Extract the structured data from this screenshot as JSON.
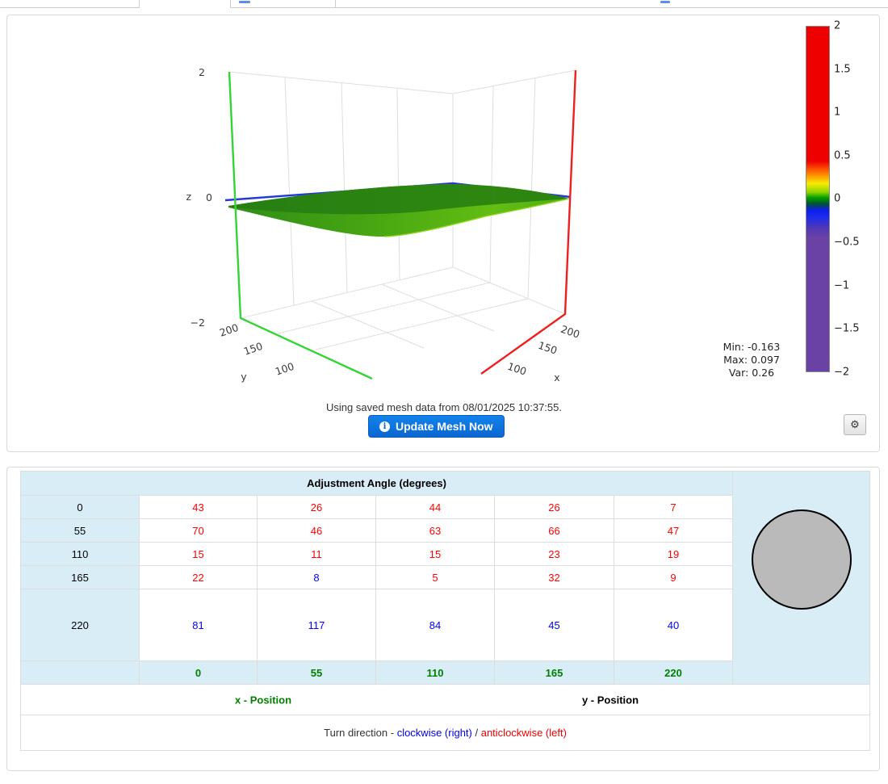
{
  "plot": {
    "z_label": "z",
    "y_label": "y",
    "x_label": "x",
    "z_ticks": [
      "2",
      "0",
      "−2"
    ],
    "y_ticks": [
      "200",
      "150",
      "100"
    ],
    "x_ticks": [
      "200",
      "150",
      "100"
    ],
    "colorbar": {
      "ticks": [
        "2",
        "1.5",
        "1",
        "0.5",
        "0",
        "−0.5",
        "−1",
        "−1.5",
        "−2"
      ]
    },
    "stats": {
      "min": "Min: -0.163",
      "max": "Max: 0.097",
      "var": "Var: 0.26"
    },
    "caption": "Using saved mesh data from 08/01/2025 10:37:55.",
    "update_button_label": "Update Mesh Now"
  },
  "icons": {
    "info": "i",
    "gear": "⚙"
  },
  "chart_data": {
    "type": "surface",
    "title": "",
    "xlabel": "x",
    "ylabel": "y",
    "zlabel": "z",
    "x_ticks": [
      200,
      150,
      100
    ],
    "y_ticks": [
      200,
      150,
      100
    ],
    "z_ticks": [
      2,
      0,
      -2
    ],
    "zlim": [
      -2,
      2
    ],
    "colorbar_ticks": [
      2,
      1.5,
      1,
      0.5,
      0,
      -0.5,
      -1,
      -1.5,
      -2
    ],
    "colorbar_colors_top_to_bottom": [
      "#ef0000",
      "#ff7b00",
      "#f6ec00",
      "#00a000",
      "#1b2bf0",
      "#6a41a5"
    ],
    "surface_summary": "near-flat green mesh surface around z=0 with shallow dip",
    "min": -0.163,
    "max": 0.097,
    "var": 0.26
  },
  "table": {
    "title": "Adjustment Angle (degrees)",
    "row_labels": [
      "0",
      "55",
      "110",
      "165",
      "220"
    ],
    "col_labels": [
      "0",
      "55",
      "110",
      "165",
      "220"
    ],
    "angle_rows": [
      {
        "label": "0",
        "tall": false,
        "cells": [
          {
            "v": "43",
            "c": "r"
          },
          {
            "v": "26",
            "c": "r"
          },
          {
            "v": "44",
            "c": "r"
          },
          {
            "v": "26",
            "c": "r"
          },
          {
            "v": "7",
            "c": "r"
          }
        ]
      },
      {
        "label": "55",
        "tall": false,
        "cells": [
          {
            "v": "70",
            "c": "r"
          },
          {
            "v": "46",
            "c": "r"
          },
          {
            "v": "63",
            "c": "r"
          },
          {
            "v": "66",
            "c": "r"
          },
          {
            "v": "47",
            "c": "r"
          }
        ]
      },
      {
        "label": "110",
        "tall": false,
        "cells": [
          {
            "v": "15",
            "c": "r"
          },
          {
            "v": "11",
            "c": "r"
          },
          {
            "v": "15",
            "c": "r"
          },
          {
            "v": "23",
            "c": "r"
          },
          {
            "v": "19",
            "c": "r"
          }
        ]
      },
      {
        "label": "165",
        "tall": false,
        "cells": [
          {
            "v": "22",
            "c": "r"
          },
          {
            "v": "8",
            "c": "b"
          },
          {
            "v": "5",
            "c": "r"
          },
          {
            "v": "32",
            "c": "r"
          },
          {
            "v": "9",
            "c": "r"
          }
        ]
      },
      {
        "label": "220",
        "tall": true,
        "cells": [
          {
            "v": "81",
            "c": "b"
          },
          {
            "v": "117",
            "c": "b"
          },
          {
            "v": "84",
            "c": "b"
          },
          {
            "v": "45",
            "c": "b"
          },
          {
            "v": "40",
            "c": "b"
          }
        ]
      }
    ],
    "x_axis_label": "x - Position",
    "y_axis_label": "y - Position",
    "turn_prefix": "Turn direction - ",
    "turn_clockwise": "clockwise (right)",
    "turn_separator": " / ",
    "turn_anticlockwise": "anticlockwise (left)"
  },
  "colors": {
    "value_red": "#ff0000",
    "value_blue": "#0000ff",
    "label_green": "#008000",
    "header_bg": "#d9edf7",
    "button_blue": "#0b67d2"
  }
}
